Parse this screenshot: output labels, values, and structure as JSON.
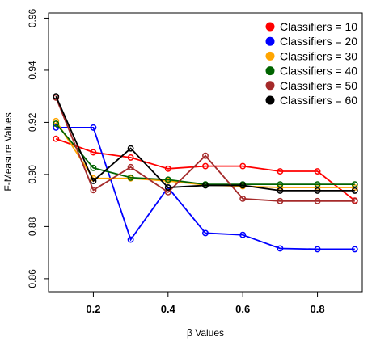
{
  "chart_data": {
    "type": "line",
    "title": "",
    "xlabel": "β Values",
    "ylabel": "F-Measure Values",
    "x": [
      0.1,
      0.2,
      0.3,
      0.4,
      0.5,
      0.6,
      0.7,
      0.8,
      0.9
    ],
    "xlim": [
      0.08,
      0.92
    ],
    "ylim": [
      0.855,
      0.962
    ],
    "x_ticks": [
      0.2,
      0.4,
      0.6,
      0.8
    ],
    "x_tick_labels": [
      "0.2",
      "0.4",
      "0.6",
      "0.8"
    ],
    "y_ticks": [
      0.86,
      0.88,
      0.9,
      0.92,
      0.94,
      0.96
    ],
    "y_tick_labels": [
      "0.86",
      "0.88",
      "0.90",
      "0.92",
      "0.94",
      "0.96"
    ],
    "grid": false,
    "legend_position": "top-right",
    "series": [
      {
        "name": "Classifiers = 10",
        "color": "#ff0000",
        "values": [
          0.9137,
          0.9085,
          0.9065,
          0.9022,
          0.9032,
          0.9032,
          0.9012,
          0.9012,
          0.89
        ]
      },
      {
        "name": "Classifiers = 20",
        "color": "#0000ff",
        "values": [
          0.918,
          0.918,
          0.875,
          0.895,
          0.8775,
          0.8768,
          0.8716,
          0.8713,
          0.8713
        ]
      },
      {
        "name": "Classifiers = 30",
        "color": "#ffa500",
        "values": [
          0.9205,
          0.8985,
          0.8985,
          0.8975,
          0.896,
          0.8955,
          0.895,
          0.895,
          0.895
        ]
      },
      {
        "name": "Classifiers = 40",
        "color": "#006400",
        "values": [
          0.9195,
          0.9025,
          0.8988,
          0.898,
          0.8962,
          0.8962,
          0.8962,
          0.8962,
          0.8962
        ]
      },
      {
        "name": "Classifiers = 50",
        "color": "#a52a2a",
        "values": [
          0.9295,
          0.894,
          0.9028,
          0.8932,
          0.9072,
          0.8907,
          0.8898,
          0.8898,
          0.8898
        ]
      },
      {
        "name": "Classifiers = 60",
        "color": "#000000",
        "values": [
          0.93,
          0.8975,
          0.91,
          0.895,
          0.8958,
          0.8958,
          0.8938,
          0.8938,
          0.8938
        ]
      }
    ]
  }
}
